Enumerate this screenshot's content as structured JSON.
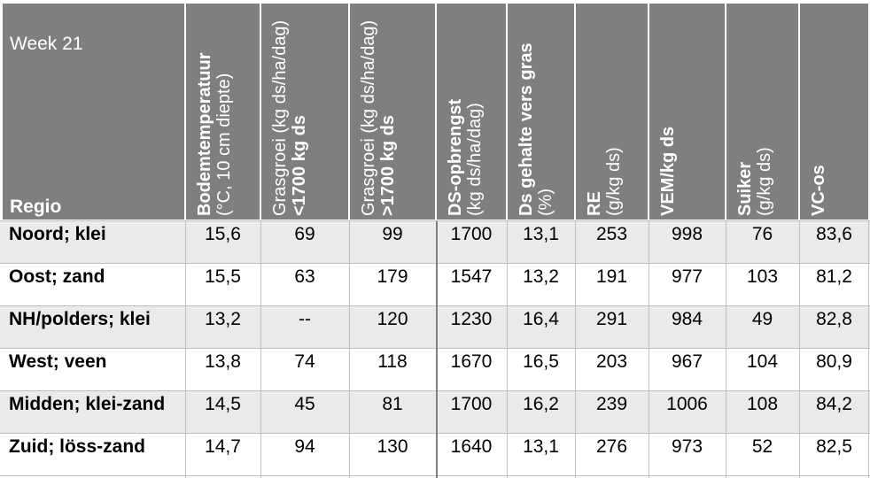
{
  "table": {
    "week_label": "Week 21",
    "region_header": "Regio",
    "headers": [
      {
        "bold": "Bodemtemperatuur",
        "rest": "(°C, 10 cm diepte)"
      },
      {
        "bold": "",
        "rest": "Grasgroei (kg ds/ha/dag)",
        "bold2": " <1700 kg ds"
      },
      {
        "bold": "",
        "rest": "Grasgroei (kg ds/ha/dag)",
        "bold2": " >1700 kg ds"
      },
      {
        "bold": "DS-opbrengst",
        "rest": "(kg ds/ha/dag)"
      },
      {
        "bold": "Ds gehalte vers gras",
        "rest": "(%)"
      },
      {
        "bold": "RE",
        "rest": "(g/kg ds)"
      },
      {
        "bold": "VEM/kg ds",
        "rest": ""
      },
      {
        "bold": "Suiker",
        "rest": "(g/kg ds)"
      },
      {
        "bold": "VC-os",
        "rest": ""
      }
    ],
    "rows": [
      {
        "region": "Noord; klei",
        "values": [
          "15,6",
          "69",
          "99",
          "1700",
          "13,1",
          "253",
          "998",
          "76",
          "83,6"
        ]
      },
      {
        "region": "Oost; zand",
        "values": [
          "15,5",
          "63",
          "179",
          "1547",
          "13,2",
          "191",
          "977",
          "103",
          "81,2"
        ]
      },
      {
        "region": "NH/polders; klei",
        "values": [
          "13,2",
          "--",
          "120",
          "1230",
          "16,4",
          "291",
          "984",
          "49",
          "82,8"
        ]
      },
      {
        "region": "West; veen",
        "values": [
          "13,8",
          "74",
          "118",
          "1670",
          "16,5",
          "203",
          "967",
          "104",
          "80,9"
        ]
      },
      {
        "region": "Midden; klei-zand",
        "values": [
          "14,5",
          "45",
          "81",
          "1700",
          "16,2",
          "239",
          "1006",
          "108",
          "84,2"
        ]
      },
      {
        "region": "Zuid; löss-zand",
        "values": [
          "14,7",
          "94",
          "130",
          "1640",
          "13,1",
          "276",
          "973",
          "52",
          "82,5"
        ]
      }
    ]
  }
}
